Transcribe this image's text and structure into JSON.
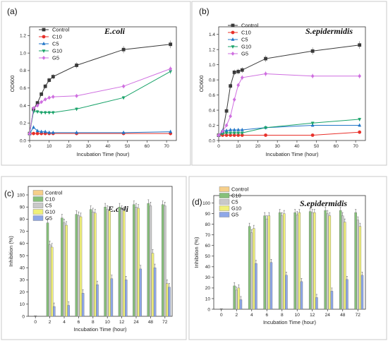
{
  "colors": {
    "Control_line": "#3a3a3a",
    "C10_line": "#e8302a",
    "C5_line": "#2176c8",
    "G10_line": "#1aa36a",
    "G5_line": "#cf6fe0",
    "Control_bar": "#f6cf8a",
    "C10_bar": "#86c07a",
    "C5_bar": "#c9c9c9",
    "G10_bar": "#f0f07a",
    "G5_bar": "#8ea7e8"
  },
  "chart_data": [
    {
      "panel": "(a)",
      "type": "line",
      "title": "E.coli",
      "xlabel": "Incubation Time (hour)",
      "ylabel": "OD600",
      "xlim": [
        0,
        75
      ],
      "ylim": [
        0,
        1.3
      ],
      "xticks": [
        0,
        10,
        20,
        30,
        40,
        50,
        60,
        70
      ],
      "yticks": [
        0.0,
        0.2,
        0.4,
        0.6,
        0.8,
        1.0,
        1.2
      ],
      "legend": "top-left",
      "series": [
        {
          "name": "Control",
          "marker": "square",
          "x": [
            0,
            2,
            4,
            6,
            8,
            10,
            12,
            24,
            48,
            72
          ],
          "y": [
            0.08,
            0.36,
            0.43,
            0.53,
            0.62,
            0.69,
            0.73,
            0.86,
            1.04,
            1.1
          ]
        },
        {
          "name": "C10",
          "marker": "circle",
          "x": [
            0,
            2,
            4,
            6,
            8,
            10,
            12,
            24,
            48,
            72
          ],
          "y": [
            0.08,
            0.08,
            0.08,
            0.08,
            0.08,
            0.08,
            0.08,
            0.08,
            0.08,
            0.08
          ]
        },
        {
          "name": "C5",
          "marker": "triangle-up",
          "x": [
            0,
            2,
            4,
            6,
            8,
            10,
            12,
            24,
            48,
            72
          ],
          "y": [
            0.08,
            0.15,
            0.11,
            0.1,
            0.1,
            0.09,
            0.09,
            0.09,
            0.09,
            0.1
          ]
        },
        {
          "name": "G10",
          "marker": "triangle-down",
          "x": [
            0,
            2,
            4,
            6,
            8,
            10,
            12,
            24,
            48,
            72
          ],
          "y": [
            0.08,
            0.33,
            0.33,
            0.32,
            0.32,
            0.32,
            0.32,
            0.36,
            0.49,
            0.79
          ]
        },
        {
          "name": "G5",
          "marker": "diamond",
          "x": [
            0,
            2,
            4,
            6,
            8,
            10,
            12,
            24,
            48,
            72
          ],
          "y": [
            0.08,
            0.37,
            0.4,
            0.44,
            0.47,
            0.49,
            0.5,
            0.51,
            0.62,
            0.82
          ]
        }
      ]
    },
    {
      "panel": "(b)",
      "type": "line",
      "title": "S.epidermidis",
      "xlabel": "Incubation Time (hour)",
      "ylabel": "OD600",
      "xlim": [
        0,
        75
      ],
      "ylim": [
        0,
        1.5
      ],
      "xticks": [
        0,
        10,
        20,
        30,
        40,
        50,
        60,
        70
      ],
      "yticks": [
        0.0,
        0.2,
        0.4,
        0.6,
        0.8,
        1.0,
        1.2,
        1.4
      ],
      "legend": "top-left",
      "series": [
        {
          "name": "Control",
          "marker": "square",
          "x": [
            0,
            2,
            4,
            6,
            8,
            10,
            12,
            24,
            48,
            72
          ],
          "y": [
            0.07,
            0.11,
            0.39,
            0.72,
            0.9,
            0.91,
            0.93,
            1.08,
            1.18,
            1.26
          ]
        },
        {
          "name": "C10",
          "marker": "circle",
          "x": [
            0,
            2,
            4,
            6,
            8,
            10,
            12,
            24,
            48,
            72
          ],
          "y": [
            0.07,
            0.07,
            0.07,
            0.07,
            0.07,
            0.07,
            0.07,
            0.07,
            0.07,
            0.11
          ]
        },
        {
          "name": "C5",
          "marker": "triangle-up",
          "x": [
            0,
            2,
            4,
            6,
            8,
            10,
            12,
            24,
            48,
            72
          ],
          "y": [
            0.07,
            0.13,
            0.13,
            0.14,
            0.14,
            0.14,
            0.14,
            0.17,
            0.2,
            0.2
          ]
        },
        {
          "name": "G10",
          "marker": "triangle-down",
          "x": [
            0,
            2,
            4,
            6,
            8,
            10,
            12,
            24,
            48,
            72
          ],
          "y": [
            0.07,
            0.09,
            0.1,
            0.1,
            0.1,
            0.1,
            0.1,
            0.17,
            0.23,
            0.28
          ]
        },
        {
          "name": "G5",
          "marker": "diamond",
          "x": [
            0,
            2,
            4,
            6,
            8,
            10,
            12,
            24,
            48,
            72
          ],
          "y": [
            0.07,
            0.12,
            0.2,
            0.32,
            0.54,
            0.73,
            0.83,
            0.88,
            0.85,
            0.85
          ]
        }
      ]
    },
    {
      "panel": "(c)",
      "type": "bar",
      "title": "E.coli",
      "xlabel": "Incubation Time (hour)",
      "ylabel": "Inhibition (%)",
      "ylim": [
        0,
        107
      ],
      "yticks": [
        0,
        10,
        20,
        30,
        40,
        50,
        60,
        70,
        80,
        90,
        100
      ],
      "categories": [
        "0",
        "2",
        "4",
        "6",
        "8",
        "10",
        "12",
        "24",
        "48",
        "72"
      ],
      "legend": "top-left",
      "series": [
        {
          "name": "Control",
          "values": [
            0,
            0,
            0,
            0,
            0,
            0,
            0,
            0,
            0,
            0
          ]
        },
        {
          "name": "C10",
          "values": [
            0,
            77,
            81,
            84,
            88,
            90,
            90,
            92,
            93,
            92
          ]
        },
        {
          "name": "C5",
          "values": [
            0,
            59,
            77,
            83,
            86,
            88,
            88,
            90,
            91,
            91
          ]
        },
        {
          "name": "G10",
          "values": [
            0,
            57,
            75,
            82,
            85,
            87,
            87,
            89,
            52,
            27
          ]
        },
        {
          "name": "G5",
          "values": [
            0,
            8,
            9,
            19,
            26,
            31,
            30,
            39,
            40,
            24
          ]
        }
      ]
    },
    {
      "panel": "(d)",
      "type": "bar",
      "title": "S.epidermidis",
      "xlabel": "Incubation Time (hour)",
      "ylabel": "Inhibition (%)",
      "ylim": [
        0,
        107
      ],
      "yticks": [
        0,
        10,
        20,
        30,
        40,
        50,
        60,
        70,
        80,
        90,
        100
      ],
      "categories": [
        "0",
        "2",
        "4",
        "6",
        "8",
        "10",
        "12",
        "24",
        "48",
        "72"
      ],
      "legend": "top-left",
      "series": [
        {
          "name": "Control",
          "values": [
            0,
            0,
            0,
            0,
            0,
            0,
            0,
            0,
            0,
            0
          ]
        },
        {
          "name": "C10",
          "values": [
            0,
            22,
            78,
            88,
            91,
            91,
            92,
            93,
            93,
            91
          ]
        },
        {
          "name": "C5",
          "values": [
            0,
            18,
            72,
            85,
            88,
            89,
            91,
            90,
            88,
            84
          ]
        },
        {
          "name": "G10",
          "values": [
            0,
            20,
            76,
            88,
            90,
            91,
            91,
            88,
            82,
            78
          ]
        },
        {
          "name": "G5",
          "values": [
            0,
            9,
            43,
            44,
            32,
            26,
            11,
            17,
            28,
            32
          ]
        }
      ]
    }
  ]
}
